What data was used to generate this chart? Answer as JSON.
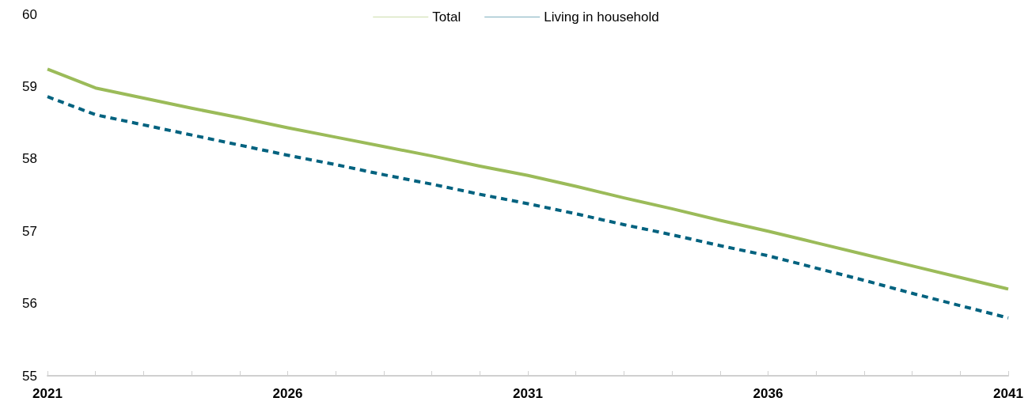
{
  "chart_data": {
    "type": "line",
    "categories": [
      "2021",
      null,
      null,
      null,
      null,
      "2026",
      null,
      null,
      null,
      null,
      "2031",
      null,
      null,
      null,
      null,
      "2036",
      null,
      null,
      null,
      null,
      "2041"
    ],
    "series": [
      {
        "name": "Total",
        "color": "#9bbb59",
        "line_style": "solid",
        "values": [
          59.24,
          58.98,
          58.84,
          58.7,
          58.57,
          58.43,
          58.3,
          58.17,
          58.04,
          57.9,
          57.77,
          57.62,
          57.46,
          57.31,
          57.15,
          57.0,
          56.84,
          56.68,
          56.52,
          56.36,
          56.2
        ]
      },
      {
        "name": "Living in household",
        "color": "#00627f",
        "line_style": "dashed",
        "values": [
          58.86,
          58.61,
          58.47,
          58.33,
          58.19,
          58.05,
          57.92,
          57.78,
          57.65,
          57.51,
          57.38,
          57.24,
          57.09,
          56.95,
          56.8,
          56.66,
          56.49,
          56.32,
          56.14,
          55.97,
          55.8
        ]
      }
    ],
    "ylim": [
      55,
      60
    ],
    "yticks": [
      55,
      56,
      57,
      58,
      59,
      60
    ],
    "grid": false,
    "legend": "top",
    "marker": "none"
  }
}
